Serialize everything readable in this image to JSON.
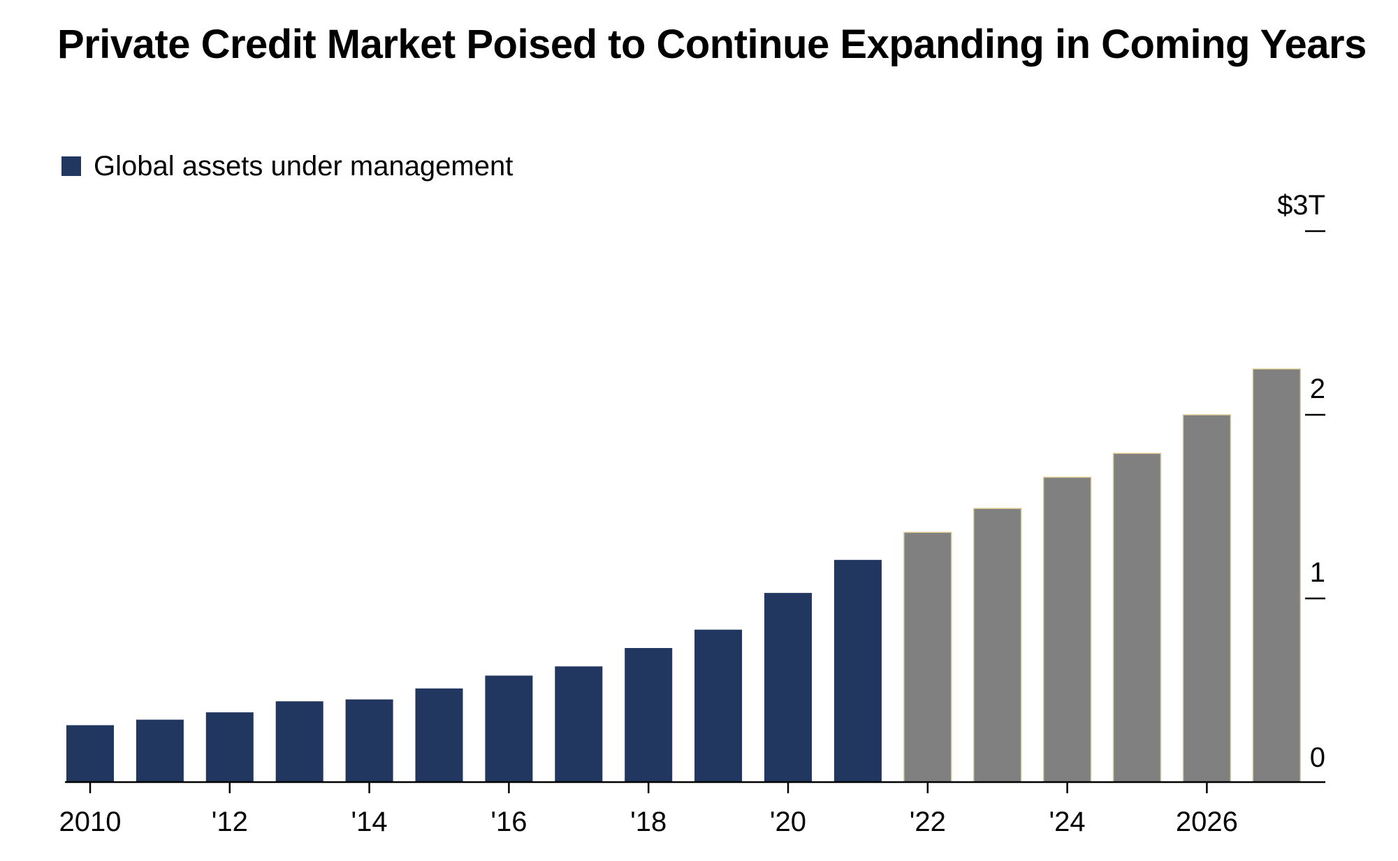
{
  "chart_data": {
    "type": "bar",
    "title": "Private Credit Market Poised to Continue Expanding in Coming Years",
    "legend": {
      "position": "top-left",
      "entries": [
        "Global assets under management"
      ]
    },
    "series": [
      {
        "name": "Global assets under management",
        "color": "#21375f",
        "x": [
          2010,
          2011,
          2012,
          2013,
          2014,
          2015,
          2016,
          2017,
          2018,
          2019,
          2020,
          2021
        ],
        "values": [
          0.31,
          0.34,
          0.38,
          0.44,
          0.45,
          0.51,
          0.58,
          0.63,
          0.73,
          0.83,
          1.03,
          1.21
        ]
      },
      {
        "color": "#808080",
        "x": [
          2022,
          2023,
          2024,
          2025,
          2026,
          2027
        ],
        "values": [
          1.36,
          1.49,
          1.66,
          1.79,
          2.0,
          2.25
        ]
      }
    ],
    "x_tick_labels": [
      {
        "x": 2010,
        "label": "2010"
      },
      {
        "x": 2012,
        "label": "'12"
      },
      {
        "x": 2014,
        "label": "'14"
      },
      {
        "x": 2016,
        "label": "'16"
      },
      {
        "x": 2018,
        "label": "'18"
      },
      {
        "x": 2020,
        "label": "'20"
      },
      {
        "x": 2022,
        "label": "'22"
      },
      {
        "x": 2024,
        "label": "'24"
      },
      {
        "x": 2026,
        "label": "2026"
      }
    ],
    "y_ticks": [
      {
        "value": 0,
        "label": "0"
      },
      {
        "value": 1,
        "label": "1"
      },
      {
        "value": 2,
        "label": "2"
      },
      {
        "value": 3,
        "label": "$3T"
      }
    ],
    "ylim": [
      0,
      3
    ],
    "y_axis_side": "right",
    "grid": false
  }
}
